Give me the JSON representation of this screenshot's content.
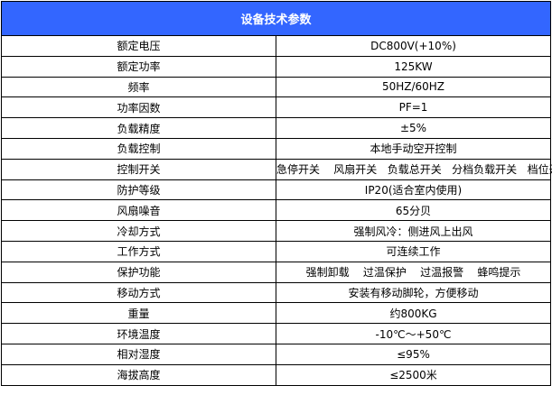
{
  "title": "设备技术参数",
  "header_color": "#3366ff",
  "rows": [
    {
      "label": "额定电压",
      "value": "DC800V(+10%)"
    },
    {
      "label": "额定功率",
      "value": "125KW"
    },
    {
      "label": "频率",
      "value": "50HZ/60HZ"
    },
    {
      "label": "功率因数",
      "value": "PF=1"
    },
    {
      "label": "负载精度",
      "value": "±5%"
    },
    {
      "label": "负载控制",
      "value": "本地手动空开控制"
    },
    {
      "label": "控制开关",
      "value": "急停开关    风扇开关   负载总开关   分档负载开关   档位开关"
    },
    {
      "label": "防护等级",
      "value": "IP20(适合室内使用)"
    },
    {
      "label": "风扇噪音",
      "value": "65分贝"
    },
    {
      "label": "冷却方式",
      "value": "强制风冷：侧进风上出风"
    },
    {
      "label": "工作方式",
      "value": "可连续工作"
    },
    {
      "label": "保护功能",
      "value": "强制卸载    过温保护    过温报警    蜂鸣提示"
    },
    {
      "label": "移动方式",
      "value": "安装有移动脚轮，方便移动"
    },
    {
      "label": "重量",
      "value": "约800KG"
    },
    {
      "label": "环境温度",
      "value": "-10℃～+50℃"
    },
    {
      "label": "相对湿度",
      "value": "≤95%"
    },
    {
      "label": "海拔高度",
      "value": "≤2500米"
    }
  ]
}
